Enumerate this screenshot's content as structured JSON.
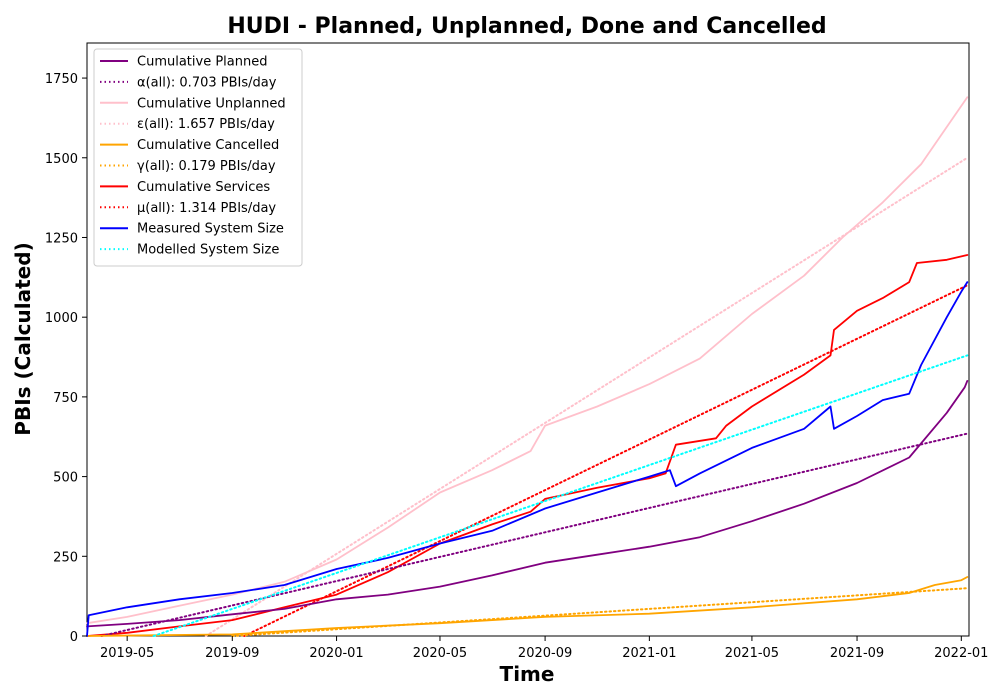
{
  "chart_data": {
    "type": "line",
    "title": "HUDI - Planned, Unplanned, Done  and Cancelled",
    "xlabel": "Time",
    "ylabel": "PBIs (Calculated)",
    "x_axis": {
      "type": "date",
      "range": [
        "2019-03-15",
        "2022-01-10"
      ],
      "ticks": [
        "2019-05-01",
        "2019-09-01",
        "2020-01-01",
        "2020-05-01",
        "2020-09-01",
        "2021-01-01",
        "2021-05-01",
        "2021-09-01",
        "2022-01-01"
      ],
      "tick_labels": [
        "2019-05",
        "2019-09",
        "2020-01",
        "2020-05",
        "2020-09",
        "2021-01",
        "2021-05",
        "2021-09",
        "2022-01"
      ]
    },
    "y_axis": {
      "range": [
        0,
        1860
      ],
      "ticks": [
        0,
        250,
        500,
        750,
        1000,
        1250,
        1500,
        1750
      ],
      "tick_labels": [
        "0",
        "250",
        "500",
        "750",
        "1000",
        "1250",
        "1500",
        "1750"
      ]
    },
    "grid": false,
    "legend_position": "top-left",
    "series": [
      {
        "name": "Cumulative Planned",
        "color": "#800080",
        "style": "solid",
        "points": [
          [
            "2019-03-15",
            30
          ],
          [
            "2019-05-01",
            38
          ],
          [
            "2019-07-01",
            50
          ],
          [
            "2019-09-01",
            68
          ],
          [
            "2019-11-01",
            85
          ],
          [
            "2020-01-01",
            115
          ],
          [
            "2020-03-01",
            130
          ],
          [
            "2020-05-01",
            155
          ],
          [
            "2020-07-01",
            190
          ],
          [
            "2020-09-01",
            230
          ],
          [
            "2020-11-01",
            255
          ],
          [
            "2021-01-01",
            280
          ],
          [
            "2021-03-01",
            310
          ],
          [
            "2021-05-01",
            360
          ],
          [
            "2021-07-01",
            415
          ],
          [
            "2021-09-01",
            480
          ],
          [
            "2021-11-01",
            560
          ],
          [
            "2021-12-15",
            700
          ],
          [
            "2022-01-05",
            780
          ],
          [
            "2022-01-08",
            800
          ]
        ]
      },
      {
        "name": "α(all): 0.703 PBIs/day",
        "color": "#800080",
        "style": "dotted",
        "points": [
          [
            "2019-04-01",
            0
          ],
          [
            "2022-01-08",
            635
          ]
        ]
      },
      {
        "name": "Cumulative Unplanned",
        "color": "#ffc0cb",
        "style": "solid",
        "points": [
          [
            "2019-03-15",
            40
          ],
          [
            "2019-05-01",
            60
          ],
          [
            "2019-07-01",
            95
          ],
          [
            "2019-09-01",
            130
          ],
          [
            "2019-11-01",
            170
          ],
          [
            "2020-01-01",
            240
          ],
          [
            "2020-03-01",
            340
          ],
          [
            "2020-05-01",
            450
          ],
          [
            "2020-07-01",
            520
          ],
          [
            "2020-08-15",
            580
          ],
          [
            "2020-09-01",
            660
          ],
          [
            "2020-11-01",
            720
          ],
          [
            "2021-01-01",
            790
          ],
          [
            "2021-03-01",
            870
          ],
          [
            "2021-05-01",
            1010
          ],
          [
            "2021-07-01",
            1130
          ],
          [
            "2021-08-15",
            1250
          ],
          [
            "2021-10-01",
            1360
          ],
          [
            "2021-11-15",
            1480
          ],
          [
            "2022-01-08",
            1690
          ]
        ]
      },
      {
        "name": "ε(all): 1.657 PBIs/day",
        "color": "#ffc0cb",
        "style": "dotted",
        "points": [
          [
            "2019-08-01",
            0
          ],
          [
            "2022-01-08",
            1500
          ]
        ]
      },
      {
        "name": "Cumulative Cancelled",
        "color": "#ffa500",
        "style": "solid",
        "points": [
          [
            "2019-03-15",
            0
          ],
          [
            "2019-09-01",
            5
          ],
          [
            "2019-11-01",
            15
          ],
          [
            "2020-01-01",
            25
          ],
          [
            "2020-05-01",
            40
          ],
          [
            "2020-09-01",
            60
          ],
          [
            "2021-01-01",
            70
          ],
          [
            "2021-05-01",
            90
          ],
          [
            "2021-09-01",
            115
          ],
          [
            "2021-11-01",
            135
          ],
          [
            "2021-12-01",
            160
          ],
          [
            "2022-01-01",
            175
          ],
          [
            "2022-01-08",
            185
          ]
        ]
      },
      {
        "name": "γ(all): 0.179 PBIs/day",
        "color": "#ffa500",
        "style": "dotted",
        "points": [
          [
            "2019-09-01",
            0
          ],
          [
            "2022-01-08",
            150
          ]
        ]
      },
      {
        "name": "Cumulative Services",
        "color": "#ff0000",
        "style": "solid",
        "points": [
          [
            "2019-03-15",
            0
          ],
          [
            "2019-05-01",
            10
          ],
          [
            "2019-07-01",
            30
          ],
          [
            "2019-09-01",
            50
          ],
          [
            "2019-11-01",
            90
          ],
          [
            "2020-01-01",
            130
          ],
          [
            "2020-03-01",
            200
          ],
          [
            "2020-05-01",
            290
          ],
          [
            "2020-07-01",
            350
          ],
          [
            "2020-08-15",
            390
          ],
          [
            "2020-09-01",
            430
          ],
          [
            "2020-11-01",
            465
          ],
          [
            "2021-01-01",
            495
          ],
          [
            "2021-01-20",
            510
          ],
          [
            "2021-02-01",
            600
          ],
          [
            "2021-03-20",
            620
          ],
          [
            "2021-04-01",
            660
          ],
          [
            "2021-05-01",
            720
          ],
          [
            "2021-07-01",
            820
          ],
          [
            "2021-08-01",
            880
          ],
          [
            "2021-08-05",
            960
          ],
          [
            "2021-09-01",
            1020
          ],
          [
            "2021-10-01",
            1060
          ],
          [
            "2021-11-01",
            1110
          ],
          [
            "2021-11-10",
            1170
          ],
          [
            "2021-12-15",
            1180
          ],
          [
            "2022-01-08",
            1195
          ]
        ]
      },
      {
        "name": "μ(all): 1.314 PBIs/day",
        "color": "#ff0000",
        "style": "dotted",
        "points": [
          [
            "2019-09-15",
            0
          ],
          [
            "2022-01-08",
            1100
          ]
        ]
      },
      {
        "name": "Measured System Size",
        "color": "#0000ff",
        "style": "solid",
        "points": [
          [
            "2019-03-15",
            0
          ],
          [
            "2019-03-17",
            65
          ],
          [
            "2019-05-01",
            90
          ],
          [
            "2019-07-01",
            115
          ],
          [
            "2019-09-01",
            135
          ],
          [
            "2019-11-01",
            160
          ],
          [
            "2020-01-01",
            210
          ],
          [
            "2020-03-01",
            245
          ],
          [
            "2020-05-01",
            290
          ],
          [
            "2020-07-01",
            330
          ],
          [
            "2020-09-01",
            400
          ],
          [
            "2020-11-01",
            450
          ],
          [
            "2021-01-01",
            500
          ],
          [
            "2021-01-25",
            520
          ],
          [
            "2021-02-01",
            470
          ],
          [
            "2021-03-01",
            510
          ],
          [
            "2021-05-01",
            590
          ],
          [
            "2021-07-01",
            650
          ],
          [
            "2021-08-01",
            720
          ],
          [
            "2021-08-05",
            650
          ],
          [
            "2021-09-01",
            690
          ],
          [
            "2021-10-01",
            740
          ],
          [
            "2021-11-01",
            760
          ],
          [
            "2021-11-15",
            850
          ],
          [
            "2021-12-15",
            1000
          ],
          [
            "2022-01-01",
            1080
          ],
          [
            "2022-01-08",
            1110
          ]
        ]
      },
      {
        "name": "Modelled System Size",
        "color": "#00ffff",
        "style": "dotted",
        "points": [
          [
            "2019-06-01",
            0
          ],
          [
            "2022-01-08",
            880
          ]
        ]
      }
    ]
  }
}
